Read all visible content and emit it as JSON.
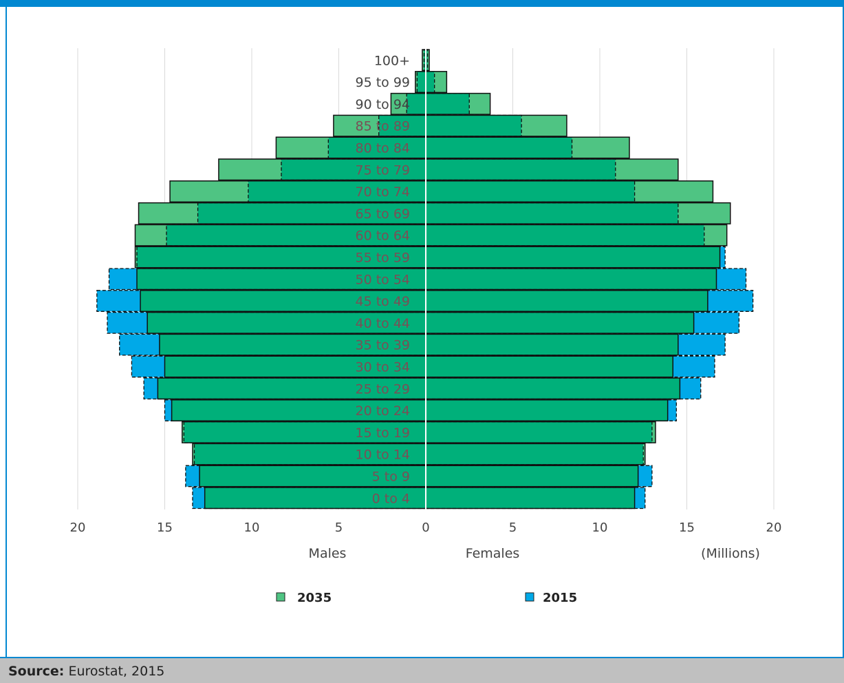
{
  "source": {
    "label": "Source:",
    "text": "Eurostat, 2015"
  },
  "colors": {
    "accent": "#0288d1",
    "series_2035": "#00b07a",
    "series_2035_excess": "#4fc483",
    "series_2015": "#00a9e8"
  },
  "chart_data": {
    "type": "bar",
    "orientation": "horizontal-population-pyramid",
    "categories": [
      "100+",
      "95 to 99",
      "90 to 94",
      "85 to 89",
      "80 to 84",
      "75 to 79",
      "70 to 74",
      "65 to 69",
      "60 to 64",
      "55 to 59",
      "50 to 54",
      "45 to 49",
      "40 to 44",
      "35 to 39",
      "30 to 34",
      "25 to 29",
      "20 to 24",
      "15 to 19",
      "10  to 14",
      "5 to 9",
      "0 to 4"
    ],
    "series": [
      {
        "name": "2035",
        "males": [
          0.2,
          0.6,
          2.0,
          5.3,
          8.6,
          11.9,
          14.7,
          16.5,
          16.7,
          16.7,
          16.6,
          16.4,
          16.0,
          15.3,
          15.0,
          15.4,
          14.6,
          14.0,
          13.4,
          13.0,
          12.7
        ],
        "females": [
          0.2,
          1.2,
          3.7,
          8.1,
          11.7,
          14.5,
          16.5,
          17.5,
          17.3,
          16.9,
          16.7,
          16.2,
          15.4,
          14.5,
          14.2,
          14.6,
          13.9,
          13.2,
          12.6,
          12.2,
          12.0
        ]
      },
      {
        "name": "2015",
        "males": [
          0.1,
          0.5,
          1.1,
          2.7,
          5.6,
          8.3,
          10.2,
          13.1,
          14.9,
          16.6,
          18.2,
          18.9,
          18.3,
          17.6,
          16.9,
          16.2,
          15.0,
          13.9,
          13.3,
          13.8,
          13.4
        ],
        "females": [
          0.1,
          0.5,
          2.5,
          5.5,
          8.4,
          10.9,
          12.0,
          14.5,
          16.0,
          17.2,
          18.4,
          18.8,
          18.0,
          17.2,
          16.6,
          15.8,
          14.4,
          13.0,
          12.5,
          13.0,
          12.6
        ]
      }
    ],
    "xlim": [
      -20,
      20
    ],
    "x_ticks": [
      "20",
      "15",
      "10",
      "5",
      "0",
      "5",
      "10",
      "15",
      "20"
    ],
    "xlabel_left": "Males",
    "xlabel_right": "Females",
    "unit_label": "(Millions)",
    "legend": [
      {
        "name": "2035"
      },
      {
        "name": "2015"
      }
    ],
    "legend_position": "bottom",
    "grid": true
  }
}
